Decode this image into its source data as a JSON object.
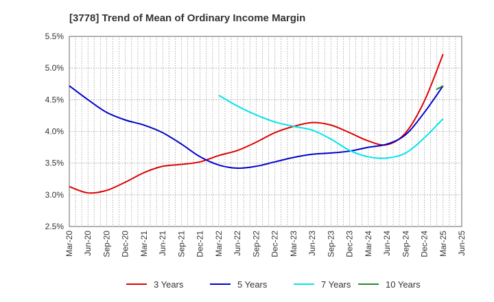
{
  "chart_data": {
    "type": "line",
    "title": "[3778]  Trend of Mean of Ordinary Income Margin",
    "xlabel": "",
    "ylabel": "",
    "x_ticks": [
      "Mar-20",
      "Jun-20",
      "Sep-20",
      "Dec-20",
      "Mar-21",
      "Jun-21",
      "Sep-21",
      "Dec-21",
      "Mar-22",
      "Jun-22",
      "Sep-22",
      "Dec-22",
      "Mar-23",
      "Jun-23",
      "Sep-23",
      "Dec-23",
      "Mar-24",
      "Jun-24",
      "Sep-24",
      "Dec-24",
      "Mar-25",
      "Jun-25"
    ],
    "y_ticks": [
      "2.5%",
      "3.0%",
      "3.5%",
      "4.0%",
      "4.5%",
      "5.0%",
      "5.5%"
    ],
    "ylim": [
      2.5,
      5.5
    ],
    "grid": true,
    "legend_position": "bottom",
    "series": [
      {
        "name": "3 Years",
        "color": "#dd0000",
        "values": [
          3.13,
          3.03,
          3.07,
          3.2,
          3.35,
          3.45,
          3.48,
          3.52,
          3.62,
          3.7,
          3.83,
          3.98,
          4.08,
          4.14,
          4.1,
          3.98,
          3.85,
          3.79,
          3.98,
          4.48,
          5.22,
          null
        ]
      },
      {
        "name": "5 Years",
        "color": "#0000cc",
        "values": [
          4.72,
          4.5,
          4.3,
          4.18,
          4.1,
          3.98,
          3.8,
          3.6,
          3.47,
          3.42,
          3.45,
          3.52,
          3.59,
          3.64,
          3.66,
          3.69,
          3.75,
          3.8,
          3.95,
          4.3,
          4.72,
          null
        ]
      },
      {
        "name": "7 Years",
        "color": "#00e5ee",
        "values": [
          null,
          null,
          null,
          null,
          null,
          null,
          null,
          null,
          4.57,
          4.4,
          4.26,
          4.15,
          4.08,
          4.02,
          3.88,
          3.7,
          3.6,
          3.58,
          3.66,
          3.9,
          4.2,
          null
        ]
      },
      {
        "name": "10 Years",
        "color": "#228b22",
        "values": [
          null,
          null,
          null,
          null,
          null,
          null,
          null,
          null,
          null,
          null,
          null,
          null,
          null,
          null,
          null,
          null,
          null,
          null,
          null,
          null,
          4.72,
          null
        ],
        "segment_start": 4.66
      }
    ]
  }
}
